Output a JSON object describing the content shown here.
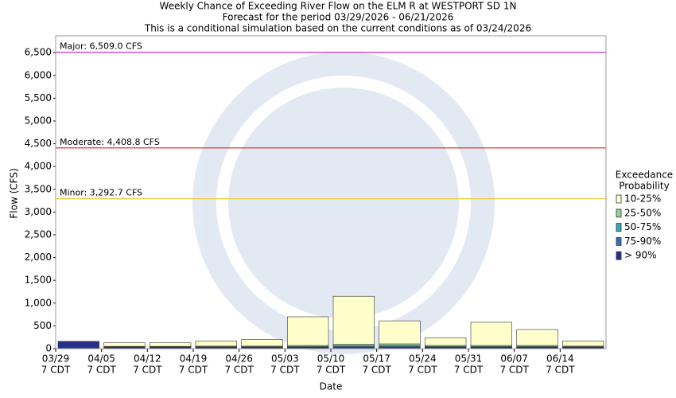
{
  "chart_data": {
    "type": "stacked_bar",
    "title": [
      "Weekly Chance of Exceeding River Flow on the ELM R at WESTPORT SD 1N",
      "Forecast for the period 03/29/2026 - 06/21/2026",
      "This is a conditional simulation based on the current conditions as of 03/24/2026"
    ],
    "x_label": "Date",
    "y_label": "Flow (CFS)",
    "categories": [
      "03/29",
      "04/05",
      "04/12",
      "04/19",
      "04/26",
      "05/03",
      "05/10",
      "05/17",
      "05/24",
      "05/31",
      "06/07",
      "06/14"
    ],
    "category_sublabel": "7 CDT",
    "series": [
      {
        "name": "> 90%",
        "color": "#27318b",
        "values": [
          160,
          20,
          20,
          20,
          20,
          20,
          25,
          25,
          20,
          20,
          20,
          20
        ]
      },
      {
        "name": "75-90%",
        "color": "#2e72b8",
        "values": [
          0,
          10,
          10,
          10,
          10,
          10,
          15,
          15,
          10,
          10,
          10,
          10
        ]
      },
      {
        "name": "50-75%",
        "color": "#3aa6b9",
        "values": [
          0,
          10,
          10,
          10,
          10,
          15,
          20,
          25,
          15,
          15,
          15,
          10
        ]
      },
      {
        "name": "25-50%",
        "color": "#90d4a0",
        "values": [
          0,
          10,
          10,
          15,
          15,
          25,
          35,
          40,
          25,
          25,
          25,
          15
        ]
      },
      {
        "name": "10-25%",
        "color": "#ffffcc",
        "values": [
          0,
          80,
          80,
          115,
          145,
          630,
          1055,
          505,
          170,
          510,
          350,
          115
        ]
      }
    ],
    "legend_title": [
      "Exceedance",
      "Probability"
    ],
    "legend_order": "reversed",
    "thresholds": [
      {
        "label": "Major: 6,509.0 CFS",
        "value": 6509,
        "color": "#cc33cc"
      },
      {
        "label": "Moderate: 4,408.8 CFS",
        "value": 4408.8,
        "color": "#dd2222"
      },
      {
        "label": "Minor: 3,292.7 CFS",
        "value": 3292.7,
        "color": "#e8d040"
      }
    ],
    "ylim": [
      0,
      6870
    ],
    "yticks": [
      0,
      500,
      {
        "value": 1000,
        "label": "1,000"
      },
      {
        "value": 1500,
        "label": "1,500"
      },
      {
        "value": 2000,
        "label": "2,000"
      },
      {
        "value": 2500,
        "label": "2,500"
      },
      {
        "value": 3000,
        "label": "3,000"
      },
      {
        "value": 3500,
        "label": "3,500"
      },
      {
        "value": 4000,
        "label": "4,000"
      },
      {
        "value": 4500,
        "label": "4,500"
      },
      {
        "value": 5000,
        "label": "5,000"
      },
      {
        "value": 5500,
        "label": "5,500"
      },
      {
        "value": 6000,
        "label": "6,000"
      },
      {
        "value": 6500,
        "label": "6,500"
      }
    ],
    "grid": false
  }
}
